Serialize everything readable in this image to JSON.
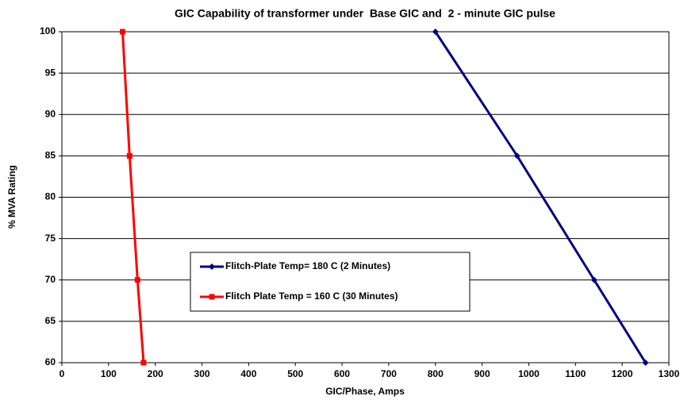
{
  "chart_data": {
    "type": "line",
    "title": "GIC Capability of transformer under  Base GIC and  2 - minute GIC pulse",
    "x_label": "GIC/Phase, Amps",
    "y_label": "% MVA Rating",
    "series": [
      {
        "name": "Flitch-Plate Temp= 180 C (2 Minutes)",
        "color": "#000080",
        "marker": "diamond",
        "x": [
          800,
          975,
          1140,
          1250
        ],
        "values": [
          100,
          85,
          70,
          60
        ]
      },
      {
        "name": "Flitch Plate Temp = 160 C (30 Minutes)",
        "color": "#ff0000",
        "marker": "square",
        "x": [
          130,
          145,
          162,
          175
        ],
        "values": [
          100,
          85,
          70,
          60
        ]
      }
    ],
    "xlim": [
      0,
      1300
    ],
    "xticks": [
      0,
      100,
      200,
      300,
      400,
      500,
      600,
      700,
      800,
      900,
      1000,
      1100,
      1200,
      1300
    ],
    "ylim": [
      60,
      100
    ],
    "yticks": [
      60,
      65,
      70,
      75,
      80,
      85,
      90,
      95,
      100
    ],
    "grid": "y",
    "legend": "center"
  }
}
